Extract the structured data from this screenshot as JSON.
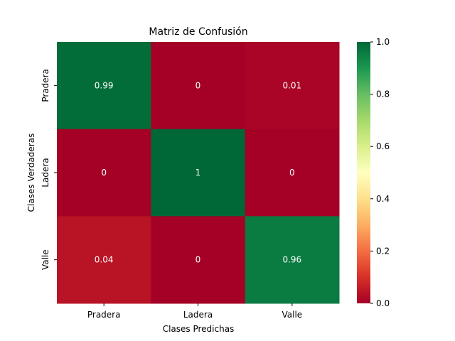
{
  "chart_data": {
    "type": "heatmap",
    "title": "Matriz de Confusión",
    "xlabel": "Clases Predichas",
    "ylabel": "Clases Verdaderas",
    "x_categories": [
      "Pradera",
      "Ladera",
      "Valle"
    ],
    "y_categories": [
      "Pradera",
      "Ladera",
      "Valle"
    ],
    "values": [
      [
        0.99,
        0,
        0.01
      ],
      [
        0,
        1,
        0
      ],
      [
        0.04,
        0,
        0.96
      ]
    ],
    "cell_labels": [
      [
        "0.99",
        "0",
        "0.01"
      ],
      [
        "0",
        "1",
        "0"
      ],
      [
        "0.04",
        "0",
        "0.96"
      ]
    ],
    "colormap": "RdYlGn",
    "colorbar": {
      "range": [
        0,
        1
      ],
      "ticks": [
        0.0,
        0.2,
        0.4,
        0.6,
        0.8,
        1.0
      ],
      "tick_labels": [
        "0.0",
        "0.2",
        "0.4",
        "0.6",
        "0.8",
        "1.0"
      ]
    },
    "grid": false,
    "legend": "colorbar-right"
  }
}
